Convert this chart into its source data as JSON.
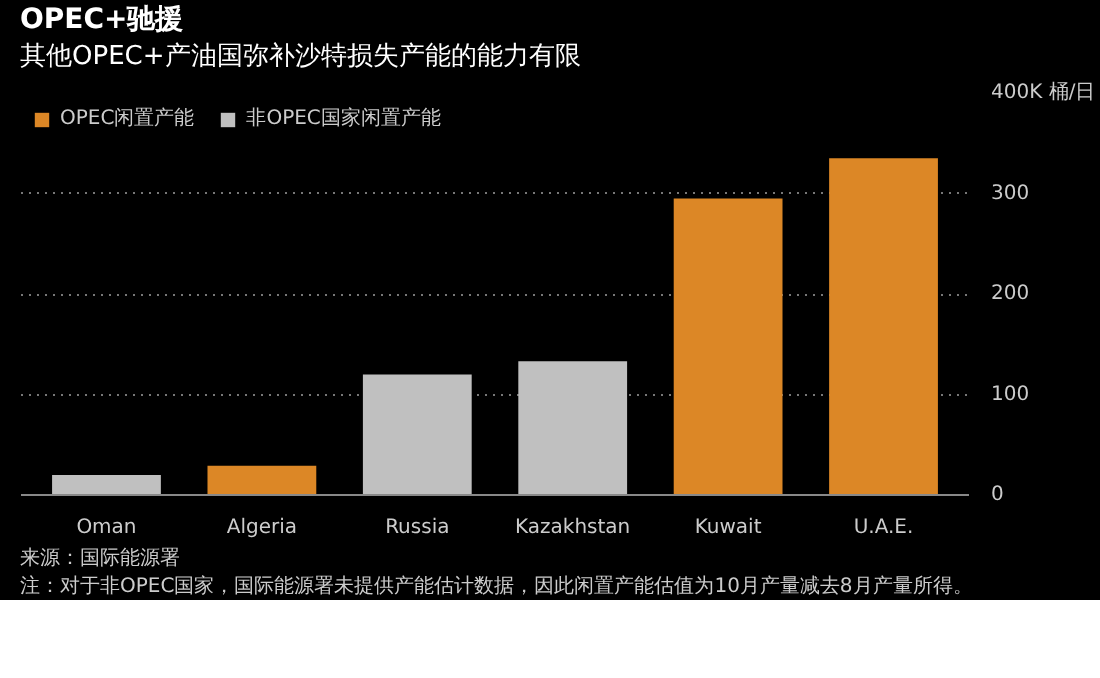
{
  "chart_data": {
    "type": "bar",
    "title": "OPEC+驰援",
    "subtitle": "其他OPEC+产油国弥补沙特损失产能的能力有限",
    "categories": [
      "Oman",
      "Algeria",
      "Russia",
      "Kazakhstan",
      "Kuwait",
      "U.A.E."
    ],
    "series": [
      {
        "name": "OPEC闲置产能",
        "color": "#dc8726",
        "values": [
          null,
          29,
          null,
          null,
          295,
          335
        ]
      },
      {
        "name": "非OPEC国家闲置产能",
        "color": "#c0c0c0",
        "values": [
          20,
          null,
          120,
          133,
          null,
          null
        ]
      }
    ],
    "ylim": [
      0,
      400
    ],
    "yticks": [
      0,
      100,
      200,
      300,
      {
        "value": 400,
        "label": "400K 桶/日"
      }
    ],
    "grid": "y",
    "legend": "top left",
    "annotations": [
      "来源：国际能源署",
      "注：对于非OPEC国家，国际能源署未提供产能估计数据，因此闲置产能估值为10月产量减去8月产量所得。"
    ]
  }
}
